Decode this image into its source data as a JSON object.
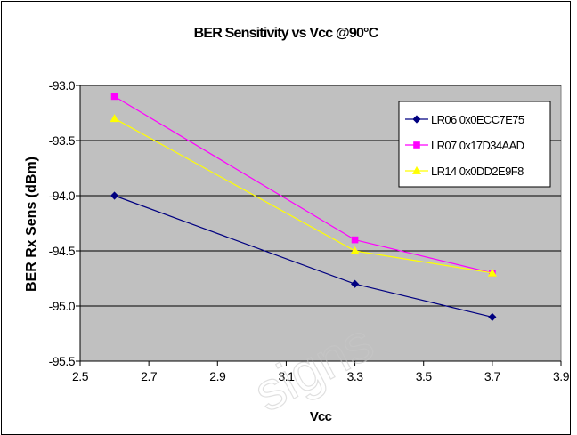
{
  "chart_data": {
    "type": "line",
    "title": "BER Sensitivity vs Vcc @90°C",
    "xlabel": "Vcc",
    "ylabel": "BER Rx Sens (dBm)",
    "xlim": [
      2.5,
      3.9
    ],
    "ylim": [
      -95.5,
      -93.0
    ],
    "y_inverted": true,
    "xticks": [
      "2.5",
      "2.7",
      "2.9",
      "3.1",
      "3.3",
      "3.5",
      "3.7",
      "3.9"
    ],
    "yticks": [
      "-93.0",
      "-93.5",
      "-94.0",
      "-94.5",
      "-95.0",
      "-95.5"
    ],
    "grid": "horizontal",
    "plot_background": "#c0c0c0",
    "legend_position": "top-right",
    "series": [
      {
        "name": "LR06 0x0ECC7E75",
        "color": "#000080",
        "marker": "diamond",
        "x": [
          2.6,
          3.3,
          3.7
        ],
        "y": [
          -94.0,
          -94.8,
          -95.1
        ]
      },
      {
        "name": "LR07 0x17D34AAD",
        "color": "#ff00ff",
        "marker": "square",
        "x": [
          2.6,
          3.3,
          3.7
        ],
        "y": [
          -93.1,
          -94.4,
          -94.7
        ]
      },
      {
        "name": "LR14 0x0DD2E9F8",
        "color": "#ffff00",
        "marker": "triangle",
        "x": [
          2.6,
          3.3,
          3.7
        ],
        "y": [
          -93.3,
          -94.5,
          -94.7
        ]
      }
    ]
  },
  "watermark": "signs"
}
